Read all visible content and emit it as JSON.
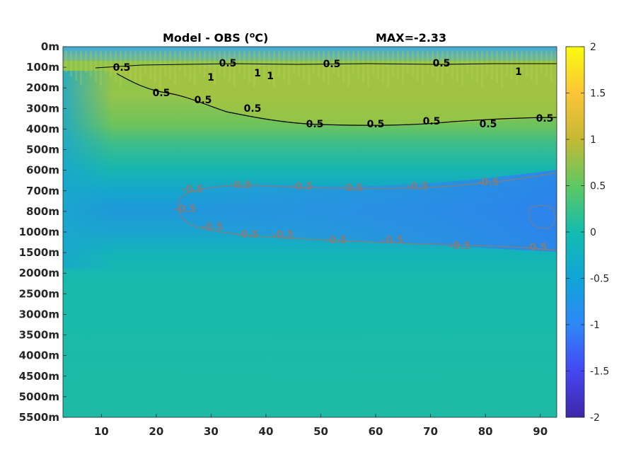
{
  "chart_data": {
    "type": "heatmap",
    "title": "Model - OBS (",
    "title_unit_sup": "o",
    "title_unit_tail": "C)",
    "max_label": "MAX=-2.33",
    "colormap": "parula",
    "clim": [
      -2,
      2
    ],
    "xlim": [
      3,
      93
    ],
    "x_ticks": [
      10,
      20,
      30,
      40,
      50,
      60,
      70,
      80,
      90
    ],
    "y_ticks": [
      "0m",
      "100m",
      "200m",
      "300m",
      "400m",
      "500m",
      "600m",
      "700m",
      "800m",
      "1000m",
      "1500m",
      "2000m",
      "2500m",
      "3000m",
      "3500m",
      "4000m",
      "4500m",
      "5000m",
      "5500m"
    ],
    "colorbar_ticks": [
      "2",
      "1.5",
      "1",
      "0.5",
      "0",
      "-0.5",
      "-1",
      "-1.5",
      "-2"
    ],
    "colorbar_values": [
      2,
      1.5,
      1,
      0.5,
      0,
      -0.5,
      -1,
      -1.5,
      -2
    ],
    "contours": [
      {
        "level": 0.5,
        "color": "#000000",
        "labels": [
          "0.5",
          "0.5",
          "0.5",
          "0.5",
          "0.5",
          "0.5",
          "0.5",
          "0.5",
          "0.5",
          "0.5",
          "0.5",
          "0.5"
        ]
      },
      {
        "level": 1,
        "color": "#000000",
        "labels": [
          "1",
          "1",
          "1",
          "1"
        ]
      },
      {
        "level": -0.5,
        "color": "#7f7f7f",
        "labels": [
          "-0.5",
          "-0.5",
          "-0.5",
          "-0.5",
          "-0.5",
          "-0.5",
          "-0.5",
          "-0.5",
          "-0.5",
          "-0.5",
          "-0.5",
          "-0.5",
          "-0.5",
          "-0.5"
        ]
      }
    ]
  }
}
